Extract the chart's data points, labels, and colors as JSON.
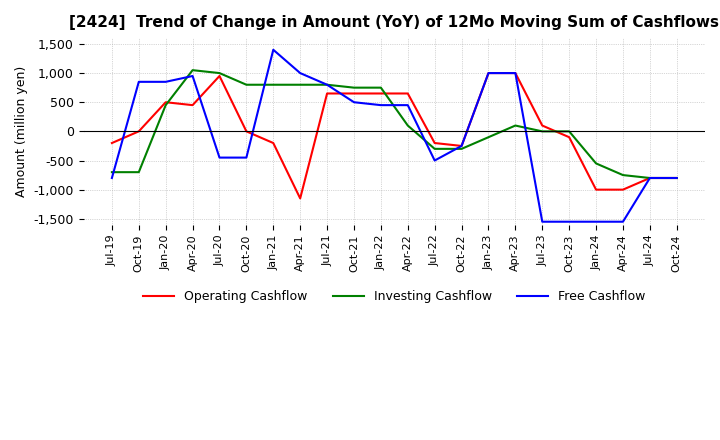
{
  "title": "[2424]  Trend of Change in Amount (YoY) of 12Mo Moving Sum of Cashflows",
  "ylabel": "Amount (million yen)",
  "ylim": [
    -1600,
    1600
  ],
  "yticks": [
    -1500,
    -1000,
    -500,
    0,
    500,
    1000,
    1500
  ],
  "x_labels": [
    "Jul-19",
    "Oct-19",
    "Jan-20",
    "Apr-20",
    "Jul-20",
    "Oct-20",
    "Jan-21",
    "Apr-21",
    "Jul-21",
    "Oct-21",
    "Jan-22",
    "Apr-22",
    "Jul-22",
    "Oct-22",
    "Jan-23",
    "Apr-23",
    "Jul-23",
    "Oct-23",
    "Jan-24",
    "Apr-24",
    "Jul-24",
    "Oct-24"
  ],
  "operating": [
    -200,
    0,
    500,
    450,
    950,
    0,
    -200,
    -1150,
    650,
    650,
    650,
    650,
    -200,
    -250,
    1000,
    1000,
    100,
    -100,
    -1000,
    -1000,
    -800,
    -800
  ],
  "investing": [
    -700,
    -700,
    450,
    1050,
    1000,
    800,
    800,
    800,
    800,
    750,
    750,
    100,
    -300,
    -300,
    -100,
    100,
    0,
    0,
    -550,
    -750,
    -800,
    -800
  ],
  "free": [
    -800,
    850,
    850,
    950,
    -450,
    -450,
    1400,
    1000,
    800,
    500,
    450,
    450,
    -500,
    -250,
    1000,
    1000,
    -1550,
    -1550,
    -1550,
    -1550,
    -800,
    -800
  ],
  "operating_color": "#ff0000",
  "investing_color": "#008000",
  "free_color": "#0000ff",
  "background_color": "#ffffff",
  "grid_color": "#b0b0b0"
}
